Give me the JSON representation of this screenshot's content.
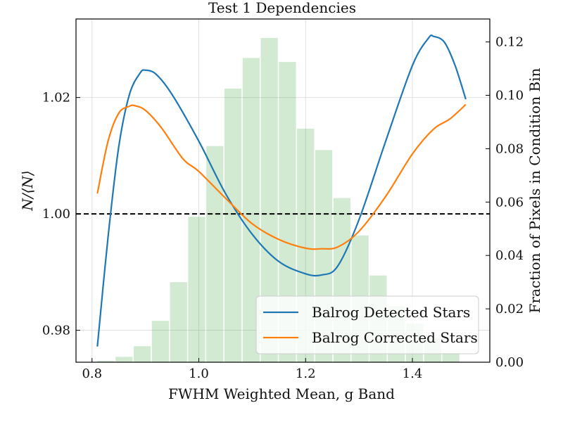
{
  "chart_data": {
    "type": "bar+line",
    "title": "Test 1 Dependencies",
    "xlabel": "FWHM Weighted Mean, g Band",
    "ylabel_left": "N/⟨N⟩",
    "ylabel_right": "Fraction of Pixels in Condition Bin",
    "xlim": [
      0.77,
      1.545
    ],
    "ylim_left": [
      0.9745,
      1.0335
    ],
    "ylim_right": [
      0.0,
      0.1286
    ],
    "x_ticks": [
      {
        "value": 0.8,
        "label": "0.8"
      },
      {
        "value": 1.0,
        "label": "1.0"
      },
      {
        "value": 1.2,
        "label": "1.2"
      },
      {
        "value": 1.4,
        "label": "1.4"
      }
    ],
    "y_left_ticks": [
      {
        "value": 0.98,
        "label": "0.98"
      },
      {
        "value": 1.0,
        "label": "1.00"
      },
      {
        "value": 1.02,
        "label": "1.02"
      }
    ],
    "y_right_ticks": [
      {
        "value": 0.0,
        "label": "0.00"
      },
      {
        "value": 0.02,
        "label": "0.02"
      },
      {
        "value": 0.04,
        "label": "0.04"
      },
      {
        "value": 0.06,
        "label": "0.06"
      },
      {
        "value": 0.08,
        "label": "0.08"
      },
      {
        "value": 0.1,
        "label": "0.10"
      },
      {
        "value": 0.12,
        "label": "0.12"
      }
    ],
    "reference_line": {
      "y": 1.0,
      "style": "dashed",
      "color": "#000000"
    },
    "grid": true,
    "histogram": {
      "color": "#2ca02c",
      "opacity": 0.22,
      "bin_width": 0.034,
      "bin_centers": [
        0.826,
        0.86,
        0.894,
        0.928,
        0.962,
        0.996,
        1.03,
        1.064,
        1.098,
        1.132,
        1.166,
        1.2,
        1.234,
        1.268,
        1.302,
        1.336,
        1.37,
        1.404,
        1.438,
        1.472
      ],
      "values": [
        0.0005,
        0.002,
        0.006,
        0.0155,
        0.03,
        0.0545,
        0.081,
        0.1025,
        0.114,
        0.1215,
        0.1125,
        0.0875,
        0.0795,
        0.0615,
        0.0475,
        0.0325,
        0.021,
        0.0145,
        0.009,
        0.0035
      ]
    },
    "series": [
      {
        "name": "Balrog Detected Stars",
        "color": "#1f77b4",
        "x": [
          0.81,
          0.83,
          0.85,
          0.87,
          0.89,
          0.9,
          0.92,
          0.95,
          1.0,
          1.05,
          1.1,
          1.15,
          1.2,
          1.23,
          1.26,
          1.3,
          1.35,
          1.4,
          1.43,
          1.44,
          1.46,
          1.48,
          1.5
        ],
        "y": [
          0.9772,
          0.996,
          1.0115,
          1.0205,
          1.0242,
          1.0247,
          1.024,
          1.0205,
          1.0125,
          1.0035,
          0.9965,
          0.9918,
          0.9897,
          0.9895,
          0.991,
          0.999,
          1.0125,
          1.0255,
          1.0302,
          1.0305,
          1.0295,
          1.0255,
          1.0197
        ]
      },
      {
        "name": "Balrog Corrected Stars",
        "color": "#ff7f0e",
        "x": [
          0.81,
          0.83,
          0.85,
          0.87,
          0.88,
          0.9,
          0.93,
          0.97,
          1.0,
          1.05,
          1.1,
          1.15,
          1.2,
          1.23,
          1.26,
          1.3,
          1.35,
          1.4,
          1.44,
          1.47,
          1.5
        ],
        "y": [
          1.0035,
          1.0125,
          1.0173,
          1.0185,
          1.0186,
          1.0178,
          1.0148,
          1.0095,
          1.0073,
          1.0027,
          0.9983,
          0.9956,
          0.9941,
          0.994,
          0.9943,
          0.997,
          1.003,
          1.0103,
          1.0146,
          1.0163,
          1.0188
        ]
      }
    ],
    "legend": {
      "placement": "lower-right"
    }
  }
}
